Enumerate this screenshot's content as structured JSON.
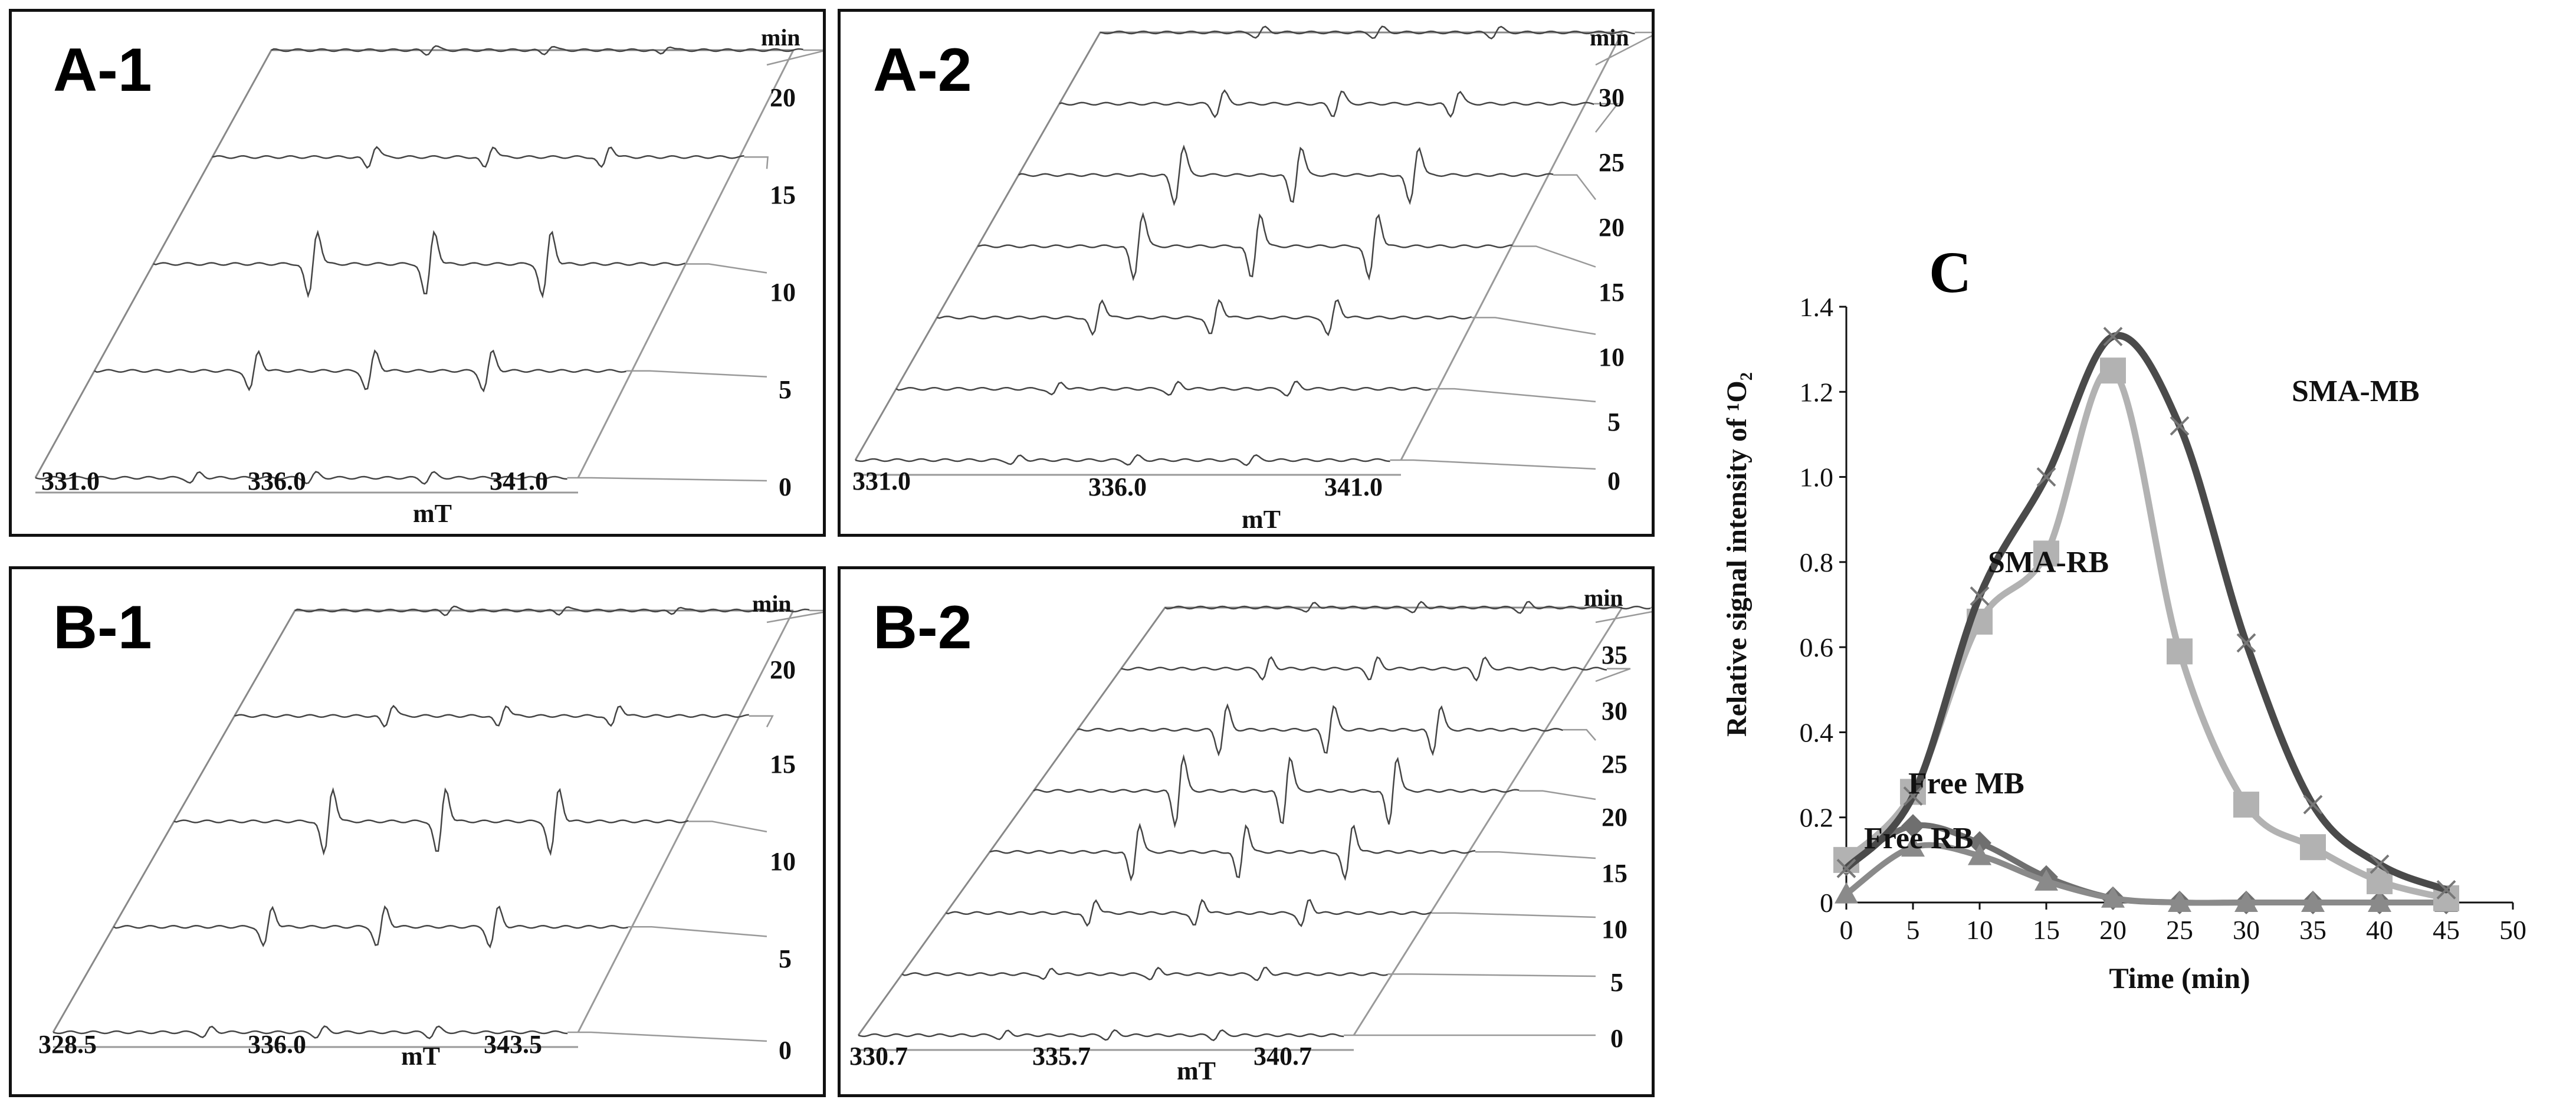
{
  "panels": [
    {
      "id": "A-1",
      "label": "A-1",
      "time_unit": "min",
      "time_labels": [
        "20",
        "15",
        "10",
        "5",
        "0"
      ],
      "xticks": [
        "331.0",
        "336.0",
        "341.0"
      ],
      "xlabel": "mT",
      "sweeps": 5
    },
    {
      "id": "A-2",
      "label": "A-2",
      "time_unit": "min",
      "time_labels": [
        "30",
        "25",
        "20",
        "15",
        "10",
        "5",
        "0"
      ],
      "xticks": [
        "331.0",
        "336.0",
        "341.0"
      ],
      "xlabel": "mT",
      "sweeps": 7
    },
    {
      "id": "B-1",
      "label": "B-1",
      "time_unit": "min",
      "time_labels": [
        "20",
        "15",
        "10",
        "5",
        "0"
      ],
      "xticks": [
        "328.5",
        "336.0",
        "343.5"
      ],
      "xlabel": "mT",
      "sweeps": 5
    },
    {
      "id": "B-2",
      "label": "B-2",
      "time_unit": "min",
      "time_labels": [
        "35",
        "30",
        "25",
        "20",
        "15",
        "10",
        "5",
        "0"
      ],
      "xticks": [
        "330.7",
        "335.7",
        "340.7"
      ],
      "xlabel": "mT",
      "sweeps": 8
    }
  ],
  "panel_c_label": "C",
  "chart_data": {
    "type": "line",
    "title": "",
    "xlabel": "Time (min)",
    "ylabel": "Relative signal intensity of ¹O₂",
    "xlim": [
      0,
      50
    ],
    "ylim": [
      0,
      1.4
    ],
    "xticks": [
      0,
      5,
      10,
      15,
      20,
      25,
      30,
      35,
      40,
      45,
      50
    ],
    "yticks": [
      0,
      0.2,
      0.4,
      0.6,
      0.8,
      1.0,
      1.2,
      1.4
    ],
    "ytick_labels": [
      "0",
      "0.2",
      "0.4",
      "0.6",
      "0.8",
      "1.0",
      "1.2",
      "1.4"
    ],
    "x": [
      0,
      5,
      10,
      15,
      20,
      25,
      30,
      35,
      40,
      45
    ],
    "series": [
      {
        "name": "SMA-MB",
        "color": "#4a4a4a",
        "marker": "x",
        "values": [
          0.08,
          0.25,
          0.72,
          1.0,
          1.33,
          1.12,
          0.61,
          0.23,
          0.09,
          0.03
        ]
      },
      {
        "name": "SMA-RB",
        "color": "#b2b2b2",
        "marker": "square",
        "values": [
          0.1,
          0.26,
          0.66,
          0.82,
          1.25,
          0.59,
          0.23,
          0.13,
          0.05,
          0.01
        ]
      },
      {
        "name": "Free MB",
        "color": "#6f6f6f",
        "marker": "diamond",
        "values": [
          0.09,
          0.18,
          0.14,
          0.06,
          0.01,
          0.0,
          0.0,
          0.0,
          0.0,
          0.0
        ]
      },
      {
        "name": "Free RB",
        "color": "#8a8a8a",
        "marker": "triangle",
        "values": [
          0.02,
          0.13,
          0.11,
          0.05,
          0.01,
          0.0,
          0.0,
          0.0,
          0.0,
          0.0
        ]
      }
    ]
  }
}
